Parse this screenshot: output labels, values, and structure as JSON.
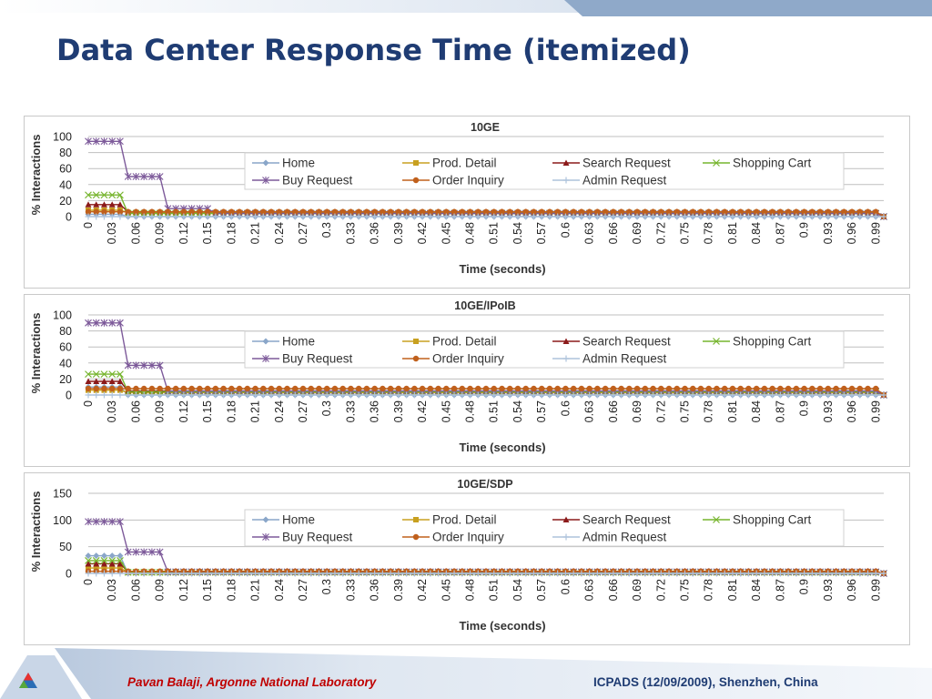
{
  "slide": {
    "title": "Data Center Response Time (itemized)",
    "footer_left": "Pavan Balaji, Argonne National Laboratory",
    "footer_right": "ICPADS (12/09/2009), Shenzhen, China",
    "logo_icon": "argonne-triangle-logo-icon",
    "colors": {
      "title": "#1f3c73",
      "footer_left": "#c00000",
      "footer_right": "#1f3c73"
    }
  },
  "chart_data": [
    {
      "type": "line",
      "title": "10GE",
      "xlabel": "Time (seconds)",
      "ylabel": "% Interactions",
      "ylim": [
        0,
        100
      ],
      "yticks": [
        0,
        20,
        40,
        60,
        80,
        100
      ],
      "x_start": 0,
      "x_step": 0.01,
      "x_count": 101,
      "xtick_labels": [
        "0",
        "0.03",
        "0.06",
        "0.09",
        "0.12",
        "0.15",
        "0.18",
        "0.21",
        "0.24",
        "0.27",
        "0.3",
        "0.33",
        "0.36",
        "0.39",
        "0.42",
        "0.45",
        "0.48",
        "0.51",
        "0.54",
        "0.57",
        "0.6",
        "0.63",
        "0.66",
        "0.69",
        "0.72",
        "0.75",
        "0.78",
        "0.81",
        "0.84",
        "0.87",
        "0.9",
        "0.93",
        "0.96",
        "0.99"
      ],
      "grid": true,
      "legend": "top-right",
      "series": [
        {
          "name": "Home",
          "color": "#8aa6c9",
          "marker": "diamond",
          "segments": [
            {
              "from": 0,
              "to": 4,
              "value": 3
            },
            {
              "from": 5,
              "to": 99,
              "value": 0
            },
            {
              "from": 100,
              "to": 100,
              "value": 0
            }
          ]
        },
        {
          "name": "Prod. Detail",
          "color": "#c8a020",
          "marker": "square",
          "segments": [
            {
              "from": 0,
              "to": 4,
              "value": 8
            },
            {
              "from": 5,
              "to": 99,
              "value": 5
            },
            {
              "from": 100,
              "to": 100,
              "value": 0
            }
          ]
        },
        {
          "name": "Search Request",
          "color": "#8b1a1a",
          "marker": "triangle",
          "segments": [
            {
              "from": 0,
              "to": 4,
              "value": 15
            },
            {
              "from": 5,
              "to": 99,
              "value": 6
            },
            {
              "from": 100,
              "to": 100,
              "value": 0
            }
          ]
        },
        {
          "name": "Shopping Cart",
          "color": "#77b52f",
          "marker": "x",
          "segments": [
            {
              "from": 0,
              "to": 4,
              "value": 27
            },
            {
              "from": 5,
              "to": 99,
              "value": 4
            },
            {
              "from": 100,
              "to": 100,
              "value": 0
            }
          ]
        },
        {
          "name": "Buy Request",
          "color": "#7d5a9a",
          "marker": "star",
          "segments": [
            {
              "from": 0,
              "to": 4,
              "value": 94
            },
            {
              "from": 5,
              "to": 9,
              "value": 50
            },
            {
              "from": 10,
              "to": 15,
              "value": 10
            },
            {
              "from": 16,
              "to": 99,
              "value": 4
            },
            {
              "from": 100,
              "to": 100,
              "value": 0
            }
          ]
        },
        {
          "name": "Order Inquiry",
          "color": "#c0601c",
          "marker": "circle",
          "segments": [
            {
              "from": 0,
              "to": 4,
              "value": 6
            },
            {
              "from": 5,
              "to": 99,
              "value": 6
            },
            {
              "from": 100,
              "to": 100,
              "value": 0
            }
          ]
        },
        {
          "name": "Admin Request",
          "color": "#aec3dc",
          "marker": "plus",
          "segments": [
            {
              "from": 0,
              "to": 100,
              "value": 0
            }
          ]
        }
      ]
    },
    {
      "type": "line",
      "title": "10GE/IPoIB",
      "xlabel": "Time (seconds)",
      "ylabel": "% Interactions",
      "ylim": [
        0,
        100
      ],
      "yticks": [
        0,
        20,
        40,
        60,
        80,
        100
      ],
      "x_start": 0,
      "x_step": 0.01,
      "x_count": 101,
      "xtick_labels": [
        "0",
        "0.03",
        "0.06",
        "0.09",
        "0.12",
        "0.15",
        "0.18",
        "0.21",
        "0.24",
        "0.27",
        "0.3",
        "0.33",
        "0.36",
        "0.39",
        "0.42",
        "0.45",
        "0.48",
        "0.51",
        "0.54",
        "0.57",
        "0.6",
        "0.63",
        "0.66",
        "0.69",
        "0.72",
        "0.75",
        "0.78",
        "0.81",
        "0.84",
        "0.87",
        "0.9",
        "0.93",
        "0.96",
        "0.99"
      ],
      "grid": true,
      "legend": "top-right",
      "series": [
        {
          "name": "Home",
          "color": "#8aa6c9",
          "marker": "diamond",
          "segments": [
            {
              "from": 0,
              "to": 4,
              "value": 10
            },
            {
              "from": 5,
              "to": 100,
              "value": 0
            }
          ]
        },
        {
          "name": "Prod. Detail",
          "color": "#c8a020",
          "marker": "square",
          "segments": [
            {
              "from": 0,
              "to": 4,
              "value": 6
            },
            {
              "from": 5,
              "to": 99,
              "value": 3
            },
            {
              "from": 100,
              "to": 100,
              "value": 0
            }
          ]
        },
        {
          "name": "Search Request",
          "color": "#8b1a1a",
          "marker": "triangle",
          "segments": [
            {
              "from": 0,
              "to": 4,
              "value": 17
            },
            {
              "from": 5,
              "to": 99,
              "value": 5
            },
            {
              "from": 100,
              "to": 100,
              "value": 0
            }
          ]
        },
        {
          "name": "Shopping Cart",
          "color": "#77b52f",
          "marker": "x",
          "segments": [
            {
              "from": 0,
              "to": 4,
              "value": 26
            },
            {
              "from": 5,
              "to": 99,
              "value": 4
            },
            {
              "from": 100,
              "to": 100,
              "value": 0
            }
          ]
        },
        {
          "name": "Buy Request",
          "color": "#7d5a9a",
          "marker": "star",
          "segments": [
            {
              "from": 0,
              "to": 4,
              "value": 90
            },
            {
              "from": 5,
              "to": 9,
              "value": 37
            },
            {
              "from": 10,
              "to": 99,
              "value": 5
            },
            {
              "from": 100,
              "to": 100,
              "value": 0
            }
          ]
        },
        {
          "name": "Order Inquiry",
          "color": "#c0601c",
          "marker": "circle",
          "segments": [
            {
              "from": 0,
              "to": 4,
              "value": 8
            },
            {
              "from": 5,
              "to": 99,
              "value": 8
            },
            {
              "from": 100,
              "to": 100,
              "value": 0
            }
          ]
        },
        {
          "name": "Admin Request",
          "color": "#aec3dc",
          "marker": "plus",
          "segments": [
            {
              "from": 0,
              "to": 100,
              "value": 0
            }
          ]
        }
      ]
    },
    {
      "type": "line",
      "title": "10GE/SDP",
      "xlabel": "Time (seconds)",
      "ylabel": "% Interactions",
      "ylim": [
        0,
        150
      ],
      "yticks": [
        0,
        50,
        100,
        150
      ],
      "x_start": 0,
      "x_step": 0.01,
      "x_count": 101,
      "xtick_labels": [
        "0",
        "0.03",
        "0.06",
        "0.09",
        "0.12",
        "0.15",
        "0.18",
        "0.21",
        "0.24",
        "0.27",
        "0.3",
        "0.33",
        "0.36",
        "0.39",
        "0.42",
        "0.45",
        "0.48",
        "0.51",
        "0.54",
        "0.57",
        "0.6",
        "0.63",
        "0.66",
        "0.69",
        "0.72",
        "0.75",
        "0.78",
        "0.81",
        "0.84",
        "0.87",
        "0.9",
        "0.93",
        "0.96",
        "0.99"
      ],
      "grid": true,
      "legend": "top-right",
      "series": [
        {
          "name": "Home",
          "color": "#8aa6c9",
          "marker": "diamond",
          "segments": [
            {
              "from": 0,
              "to": 4,
              "value": 33
            },
            {
              "from": 5,
              "to": 100,
              "value": 0
            }
          ]
        },
        {
          "name": "Prod. Detail",
          "color": "#c8a020",
          "marker": "square",
          "segments": [
            {
              "from": 0,
              "to": 4,
              "value": 10
            },
            {
              "from": 5,
              "to": 99,
              "value": 2
            },
            {
              "from": 100,
              "to": 100,
              "value": 0
            }
          ]
        },
        {
          "name": "Search Request",
          "color": "#8b1a1a",
          "marker": "triangle",
          "segments": [
            {
              "from": 0,
              "to": 4,
              "value": 18
            },
            {
              "from": 5,
              "to": 99,
              "value": 3
            },
            {
              "from": 100,
              "to": 100,
              "value": 0
            }
          ]
        },
        {
          "name": "Shopping Cart",
          "color": "#77b52f",
          "marker": "x",
          "segments": [
            {
              "from": 0,
              "to": 4,
              "value": 24
            },
            {
              "from": 5,
              "to": 99,
              "value": 2
            },
            {
              "from": 100,
              "to": 100,
              "value": 0
            }
          ]
        },
        {
          "name": "Buy Request",
          "color": "#7d5a9a",
          "marker": "star",
          "segments": [
            {
              "from": 0,
              "to": 4,
              "value": 97
            },
            {
              "from": 5,
              "to": 9,
              "value": 40
            },
            {
              "from": 10,
              "to": 99,
              "value": 3
            },
            {
              "from": 100,
              "to": 100,
              "value": 0
            }
          ]
        },
        {
          "name": "Order Inquiry",
          "color": "#c0601c",
          "marker": "circle",
          "segments": [
            {
              "from": 0,
              "to": 4,
              "value": 4
            },
            {
              "from": 5,
              "to": 99,
              "value": 4
            },
            {
              "from": 100,
              "to": 100,
              "value": 0
            }
          ]
        },
        {
          "name": "Admin Request",
          "color": "#aec3dc",
          "marker": "plus",
          "segments": [
            {
              "from": 0,
              "to": 100,
              "value": 0
            }
          ]
        }
      ]
    }
  ]
}
